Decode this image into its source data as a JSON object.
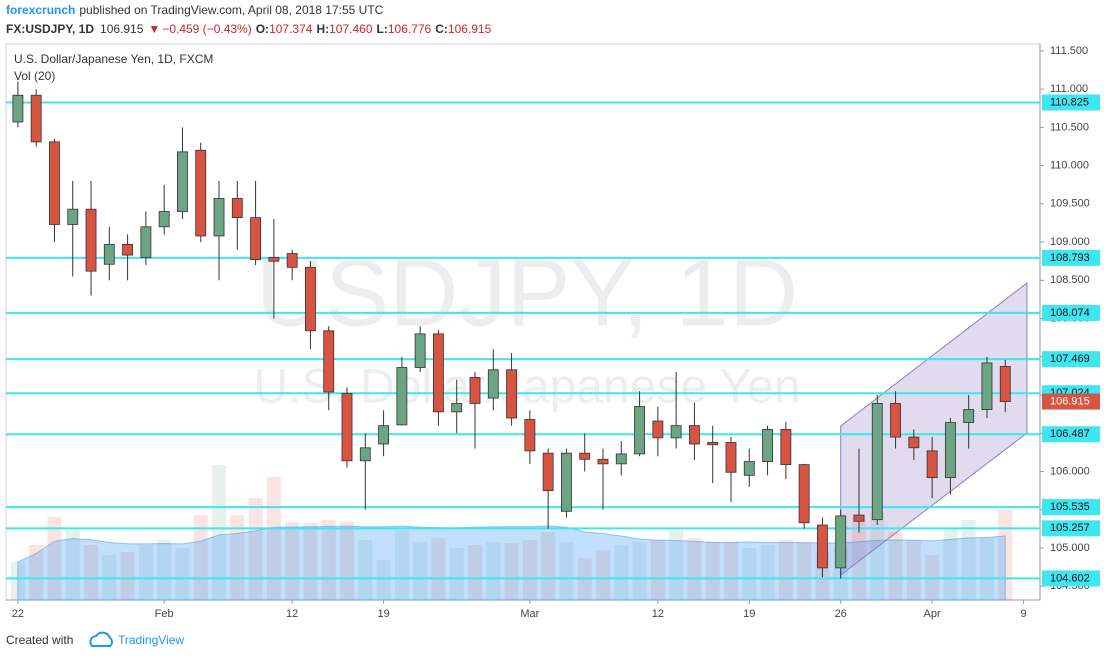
{
  "header": {
    "author": "forexcrunch",
    "published": "published on TradingView.com, April 08, 2018 17:55 UTC",
    "symbol": "FX:USDJPY, 1D",
    "last": "106.915",
    "arrow": "▼",
    "change": "−0.459 (−0.43%)",
    "ohlc": [
      {
        "label": "O:",
        "value": "107.374"
      },
      {
        "label": "H:",
        "value": "107.460"
      },
      {
        "label": "L:",
        "value": "106.776"
      },
      {
        "label": "C:",
        "value": "106.915"
      }
    ]
  },
  "chart_data": {
    "type": "candlestick",
    "title": "U.S. Dollar/Japanese Yen, 1D, FXCM",
    "indicator": "Vol (20)",
    "watermark": "USDJPY, 1D",
    "watermark_subtitle": "U.S. Dollar/Japanese Yen",
    "up_color": "#6ba583",
    "down_color": "#d75442",
    "level_color": "#3ee6f2",
    "channel_color": "#8e7cc3",
    "open": [
      110.57,
      110.92,
      110.31,
      109.23,
      109.43,
      108.71,
      108.97,
      108.8,
      109.2,
      109.4,
      110.2,
      109.08,
      109.57,
      109.32,
      108.8,
      108.85,
      108.67,
      107.84,
      107.02,
      106.14,
      106.36,
      106.61,
      107.36,
      107.8,
      106.78,
      107.23,
      106.96,
      107.33,
      106.68,
      106.24,
      105.48,
      106.24,
      106.16,
      106.1,
      106.23,
      106.66,
      106.44,
      106.6,
      106.38,
      106.38,
      105.95,
      106.13,
      106.55,
      106.09,
      105.3,
      104.74,
      105.43,
      105.37,
      106.89,
      106.45,
      106.27,
      105.92,
      106.64,
      106.81,
      107.374
    ],
    "high": [
      111.1,
      111.0,
      110.35,
      109.8,
      109.8,
      109.2,
      109.1,
      109.4,
      109.75,
      110.5,
      110.3,
      109.8,
      109.8,
      109.8,
      109.3,
      108.9,
      108.75,
      107.9,
      107.1,
      106.5,
      106.8,
      107.5,
      107.9,
      107.85,
      107.2,
      107.3,
      107.6,
      107.55,
      106.8,
      106.3,
      106.3,
      106.5,
      106.3,
      106.4,
      107.05,
      106.85,
      107.3,
      106.9,
      106.6,
      106.45,
      106.3,
      106.6,
      106.65,
      106.1,
      105.4,
      105.5,
      106.3,
      107.0,
      107.05,
      106.55,
      106.45,
      106.7,
      107.0,
      107.5,
      107.46
    ],
    "low": [
      110.5,
      110.25,
      109.0,
      108.55,
      108.3,
      108.5,
      108.5,
      108.7,
      109.1,
      109.3,
      109.0,
      108.5,
      108.9,
      108.7,
      108.0,
      108.5,
      107.6,
      106.8,
      106.05,
      105.5,
      106.2,
      106.6,
      107.3,
      106.6,
      106.5,
      106.3,
      106.8,
      106.6,
      106.1,
      105.25,
      105.4,
      106.0,
      105.5,
      105.95,
      106.2,
      106.2,
      106.3,
      106.15,
      105.85,
      105.6,
      105.8,
      105.95,
      105.9,
      105.25,
      104.62,
      104.6,
      105.2,
      105.3,
      106.3,
      106.15,
      105.65,
      105.7,
      106.3,
      106.7,
      106.776
    ],
    "close": [
      110.92,
      110.31,
      109.23,
      109.43,
      108.62,
      108.97,
      108.83,
      109.2,
      109.4,
      110.18,
      109.08,
      109.57,
      109.32,
      108.77,
      108.75,
      108.67,
      107.84,
      107.04,
      106.14,
      106.31,
      106.6,
      107.36,
      107.8,
      106.78,
      106.89,
      106.89,
      107.33,
      106.7,
      106.27,
      105.75,
      106.24,
      106.16,
      106.1,
      106.23,
      106.85,
      106.44,
      106.6,
      106.36,
      106.35,
      105.99,
      106.13,
      106.55,
      106.09,
      105.33,
      104.74,
      105.42,
      105.35,
      106.89,
      106.45,
      106.31,
      105.92,
      106.64,
      106.81,
      107.42,
      106.915
    ],
    "volume": [
      38,
      55,
      83,
      70,
      55,
      45,
      48,
      55,
      60,
      52,
      85,
      135,
      85,
      102,
      123,
      78,
      77,
      80,
      78,
      60,
      40,
      70,
      58,
      62,
      52,
      55,
      58,
      57,
      60,
      68,
      58,
      42,
      50,
      55,
      58,
      60,
      70,
      62,
      58,
      58,
      52,
      55,
      60,
      58,
      48,
      53,
      82,
      88,
      68,
      60,
      45,
      72,
      80,
      62,
      90
    ],
    "levels": [
      110.825,
      108.793,
      108.074,
      107.469,
      107.024,
      106.487,
      105.535,
      105.257,
      104.602
    ],
    "last_price": 106.915,
    "ylim": [
      104.32,
      111.59
    ],
    "yticks": [
      {
        "value": 111.5,
        "label": "111.500"
      },
      {
        "value": 111,
        "label": "111.000"
      },
      {
        "value": 110.5,
        "label": "110.500"
      },
      {
        "value": 110,
        "label": "110.000"
      },
      {
        "value": 109.5,
        "label": "109.500"
      },
      {
        "value": 109,
        "label": "109.000"
      },
      {
        "value": 108.5,
        "label": "108.500"
      },
      {
        "value": 108,
        "label": "108.000"
      },
      {
        "value": 107.5,
        "label": "107.500"
      },
      {
        "value": 107,
        "label": "107.000"
      },
      {
        "value": 106.5,
        "label": "106.500"
      },
      {
        "value": 106,
        "label": "106.000"
      },
      {
        "value": 105.5,
        "label": "105.500"
      },
      {
        "value": 105,
        "label": "105.000"
      },
      {
        "value": 104.5,
        "label": "104.500"
      }
    ],
    "xlim": [
      -0.65,
      55.9
    ],
    "xticks": [
      {
        "value": 0,
        "label": "22"
      },
      {
        "value": 8,
        "label": "Feb"
      },
      {
        "value": 15,
        "label": "12"
      },
      {
        "value": 20,
        "label": "19"
      },
      {
        "value": 28,
        "label": "Mar"
      },
      {
        "value": 35,
        "label": "12"
      },
      {
        "value": 40,
        "label": "19"
      },
      {
        "value": 45,
        "label": "26"
      },
      {
        "value": 50,
        "label": "Apr"
      },
      {
        "value": 55,
        "label": "9"
      }
    ]
  },
  "footer": {
    "created": "Created with",
    "brand": "TradingView"
  }
}
